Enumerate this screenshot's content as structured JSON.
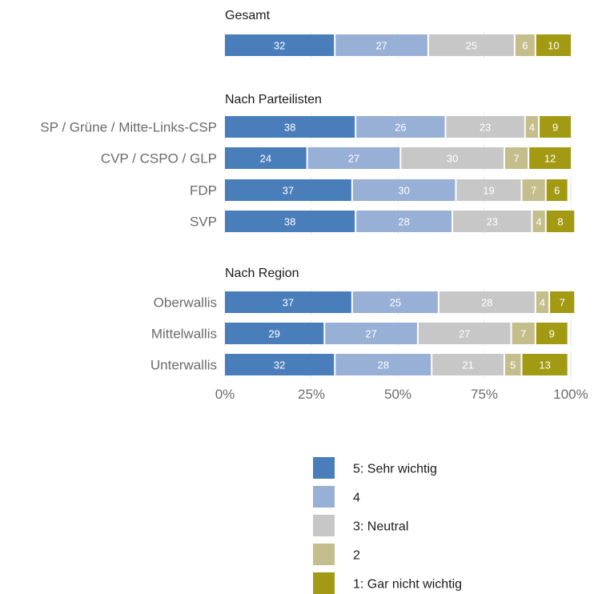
{
  "chart_data": {
    "type": "bar",
    "orientation": "horizontal",
    "stacked": true,
    "xlim": [
      0,
      100
    ],
    "x_ticks": [
      "0%",
      "25%",
      "50%",
      "75%",
      "100%"
    ],
    "legend_position": "bottom",
    "series": [
      {
        "name": "5: Sehr wichtig",
        "color": "#4a7ebb"
      },
      {
        "name": "4",
        "color": "#98afd6"
      },
      {
        "name": "3: Neutral",
        "color": "#c7c7c7"
      },
      {
        "name": "2",
        "color": "#c4be8c"
      },
      {
        "name": "1: Gar nicht wichtig",
        "color": "#a39a14"
      }
    ],
    "panels": [
      {
        "title": "Gesamt",
        "categories": [
          ""
        ],
        "values": [
          [
            32,
            27,
            25,
            6,
            10
          ]
        ]
      },
      {
        "title": "Nach Parteilisten",
        "categories": [
          "SP / Grüne / Mitte-Links-CSP",
          "CVP / CSPO / GLP",
          "FDP",
          "SVP"
        ],
        "values": [
          [
            38,
            26,
            23,
            4,
            9
          ],
          [
            24,
            27,
            30,
            7,
            12
          ],
          [
            37,
            30,
            19,
            7,
            6
          ],
          [
            38,
            28,
            23,
            4,
            8
          ]
        ]
      },
      {
        "title": "Nach Region",
        "categories": [
          "Oberwallis",
          "Mittelwallis",
          "Unterwallis"
        ],
        "values": [
          [
            37,
            25,
            28,
            4,
            7
          ],
          [
            29,
            27,
            27,
            7,
            9
          ],
          [
            32,
            28,
            21,
            5,
            13
          ]
        ]
      }
    ]
  }
}
